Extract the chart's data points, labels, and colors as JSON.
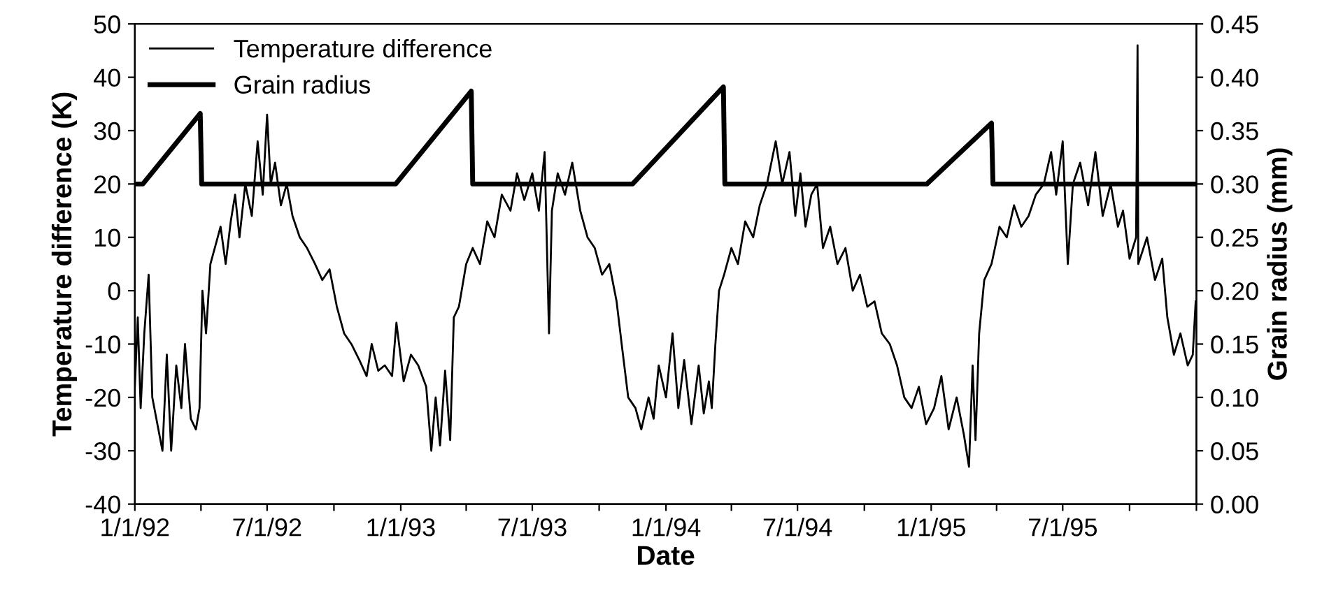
{
  "chart_data": {
    "type": "line",
    "xlabel": "Date",
    "ylabel": "Temperature difference (K)",
    "y2label": "Grain radius (mm)",
    "xlim": [
      "1992-01-01",
      "1996-01-01"
    ],
    "xticks": [
      {
        "value": "1992-01-01",
        "label": "1/1/92"
      },
      {
        "value": "1992-04-01",
        "label": null
      },
      {
        "value": "1992-07-01",
        "label": "7/1/92"
      },
      {
        "value": "1992-10-01",
        "label": null
      },
      {
        "value": "1993-01-01",
        "label": "1/1/93"
      },
      {
        "value": "1993-04-01",
        "label": null
      },
      {
        "value": "1993-07-01",
        "label": "7/1/93"
      },
      {
        "value": "1993-10-01",
        "label": null
      },
      {
        "value": "1994-01-01",
        "label": "1/1/94"
      },
      {
        "value": "1994-04-01",
        "label": null
      },
      {
        "value": "1994-07-01",
        "label": "7/1/94"
      },
      {
        "value": "1994-10-01",
        "label": null
      },
      {
        "value": "1995-01-01",
        "label": "1/1/95"
      },
      {
        "value": "1995-04-01",
        "label": null
      },
      {
        "value": "1995-07-01",
        "label": "7/1/95"
      },
      {
        "value": "1995-10-01",
        "label": null
      },
      {
        "value": "1996-01-01",
        "label": null
      }
    ],
    "ylim": [
      -40,
      50
    ],
    "yticks": [
      -40,
      -30,
      -20,
      -10,
      0,
      10,
      20,
      30,
      40,
      50
    ],
    "y2lim": [
      0,
      0.45
    ],
    "y2ticks": [
      {
        "value": 0,
        "label": "0.00"
      },
      {
        "value": 0.05,
        "label": "0.05"
      },
      {
        "value": 0.1,
        "label": "0.10"
      },
      {
        "value": 0.15,
        "label": "0.15"
      },
      {
        "value": 0.2,
        "label": "0.20"
      },
      {
        "value": 0.25,
        "label": "0.25"
      },
      {
        "value": 0.3,
        "label": "0.30"
      },
      {
        "value": 0.35,
        "label": "0.35"
      },
      {
        "value": 0.4,
        "label": "0.40"
      },
      {
        "value": 0.45,
        "label": "0.45"
      }
    ],
    "grid": false,
    "legend": "top left",
    "marker": "none",
    "line_style": "solid",
    "series": [
      {
        "name": "Temperature difference",
        "color": "#000000",
        "x": [
          "1992-01-01",
          "1992-01-05",
          "1992-01-09",
          "1992-01-14",
          "1992-01-20",
          "1992-01-25",
          "1992-02-01",
          "1992-02-08",
          "1992-02-14",
          "1992-02-20",
          "1992-02-27",
          "1992-03-05",
          "1992-03-10",
          "1992-03-18",
          "1992-03-25",
          "1992-03-30",
          "1992-04-03",
          "1992-04-08",
          "1992-04-14",
          "1992-04-20",
          "1992-04-28",
          "1992-05-05",
          "1992-05-12",
          "1992-05-18",
          "1992-05-24",
          "1992-06-01",
          "1992-06-10",
          "1992-06-18",
          "1992-06-25",
          "1992-07-01",
          "1992-07-06",
          "1992-07-12",
          "1992-07-20",
          "1992-07-28",
          "1992-08-05",
          "1992-08-15",
          "1992-08-25",
          "1992-09-05",
          "1992-09-15",
          "1992-09-25",
          "1992-10-05",
          "1992-10-15",
          "1992-10-25",
          "1992-11-05",
          "1992-11-15",
          "1992-11-22",
          "1992-12-01",
          "1992-12-10",
          "1992-12-20",
          "1992-12-26",
          "1993-01-05",
          "1993-01-15",
          "1993-01-25",
          "1993-02-05",
          "1993-02-12",
          "1993-02-18",
          "1993-02-24",
          "1993-03-03",
          "1993-03-10",
          "1993-03-15",
          "1993-03-22",
          "1993-04-01",
          "1993-04-10",
          "1993-04-20",
          "1993-04-30",
          "1993-05-10",
          "1993-05-20",
          "1993-06-01",
          "1993-06-10",
          "1993-06-20",
          "1993-07-01",
          "1993-07-10",
          "1993-07-18",
          "1993-07-24",
          "1993-07-28",
          "1993-08-05",
          "1993-08-15",
          "1993-08-25",
          "1993-09-05",
          "1993-09-15",
          "1993-09-25",
          "1993-10-05",
          "1993-10-15",
          "1993-10-25",
          "1993-11-01",
          "1993-11-10",
          "1993-11-20",
          "1993-11-28",
          "1993-12-08",
          "1993-12-15",
          "1993-12-22",
          "1994-01-01",
          "1994-01-10",
          "1994-01-18",
          "1994-01-26",
          "1994-02-05",
          "1994-02-15",
          "1994-02-22",
          "1994-03-01",
          "1994-03-05",
          "1994-03-10",
          "1994-03-15",
          "1994-03-22",
          "1994-04-01",
          "1994-04-10",
          "1994-04-20",
          "1994-05-01",
          "1994-05-10",
          "1994-05-20",
          "1994-06-01",
          "1994-06-10",
          "1994-06-20",
          "1994-06-28",
          "1994-07-05",
          "1994-07-12",
          "1994-07-20",
          "1994-07-28",
          "1994-08-05",
          "1994-08-15",
          "1994-08-25",
          "1994-09-05",
          "1994-09-15",
          "1994-09-25",
          "1994-10-05",
          "1994-10-15",
          "1994-10-25",
          "1994-11-05",
          "1994-11-15",
          "1994-11-25",
          "1994-12-05",
          "1994-12-15",
          "1994-12-25",
          "1995-01-05",
          "1995-01-15",
          "1995-01-25",
          "1995-02-05",
          "1995-02-15",
          "1995-02-22",
          "1995-02-27",
          "1995-03-03",
          "1995-03-08",
          "1995-03-15",
          "1995-03-25",
          "1995-04-05",
          "1995-04-15",
          "1995-04-25",
          "1995-05-05",
          "1995-05-15",
          "1995-05-25",
          "1995-06-05",
          "1995-06-15",
          "1995-06-22",
          "1995-07-01",
          "1995-07-08",
          "1995-07-15",
          "1995-07-25",
          "1995-08-05",
          "1995-08-15",
          "1995-08-25",
          "1995-09-05",
          "1995-09-15",
          "1995-09-22",
          "1995-10-01",
          "1995-10-10",
          "1995-10-12",
          "1995-10-13",
          "1995-10-25",
          "1995-11-05",
          "1995-11-15",
          "1995-11-22",
          "1995-12-01",
          "1995-12-10",
          "1995-12-20",
          "1995-12-27",
          "1995-12-31"
        ],
        "values": [
          -18,
          -5,
          -22,
          -8,
          3,
          -20,
          -25,
          -30,
          -12,
          -30,
          -14,
          -22,
          -10,
          -24,
          -26,
          -22,
          0,
          -8,
          5,
          8,
          12,
          5,
          13,
          18,
          10,
          20,
          14,
          28,
          18,
          33,
          20,
          24,
          16,
          20,
          14,
          10,
          8,
          5,
          2,
          4,
          -3,
          -8,
          -10,
          -13,
          -16,
          -10,
          -15,
          -14,
          -16,
          -6,
          -17,
          -12,
          -14,
          -18,
          -30,
          -20,
          -29,
          -15,
          -28,
          -5,
          -3,
          5,
          8,
          5,
          13,
          10,
          18,
          15,
          22,
          17,
          22,
          15,
          26,
          -8,
          15,
          22,
          18,
          24,
          15,
          10,
          8,
          3,
          5,
          -2,
          -10,
          -20,
          -22,
          -26,
          -20,
          -24,
          -14,
          -20,
          -8,
          -22,
          -13,
          -25,
          -14,
          -23,
          -17,
          -22,
          -10,
          0,
          3,
          8,
          5,
          13,
          10,
          16,
          20,
          28,
          20,
          26,
          14,
          22,
          12,
          18,
          20,
          8,
          12,
          5,
          8,
          0,
          3,
          -3,
          -2,
          -8,
          -10,
          -14,
          -20,
          -22,
          -18,
          -25,
          -22,
          -16,
          -26,
          -20,
          -27,
          -33,
          -14,
          -28,
          -8,
          2,
          5,
          12,
          10,
          16,
          12,
          14,
          18,
          20,
          26,
          18,
          28,
          5,
          20,
          24,
          16,
          26,
          14,
          20,
          12,
          15,
          6,
          10,
          46,
          5,
          10,
          2,
          6,
          -5,
          -12,
          -8,
          -14,
          -12,
          -2
        ]
      },
      {
        "name": "Grain radius",
        "color": "#000000",
        "axis": "y2",
        "x": [
          "1992-01-01",
          "1992-01-12",
          "1992-03-31",
          "1992-04-02",
          "1992-12-25",
          "1993-04-08",
          "1993-04-10",
          "1993-11-16",
          "1994-03-21",
          "1994-03-23",
          "1994-12-26",
          "1995-03-25",
          "1995-03-27",
          "1996-01-01"
        ],
        "values": [
          0.3,
          0.3,
          0.366,
          0.3,
          0.3,
          0.387,
          0.3,
          0.3,
          0.391,
          0.3,
          0.3,
          0.357,
          0.3,
          0.3
        ]
      }
    ]
  }
}
